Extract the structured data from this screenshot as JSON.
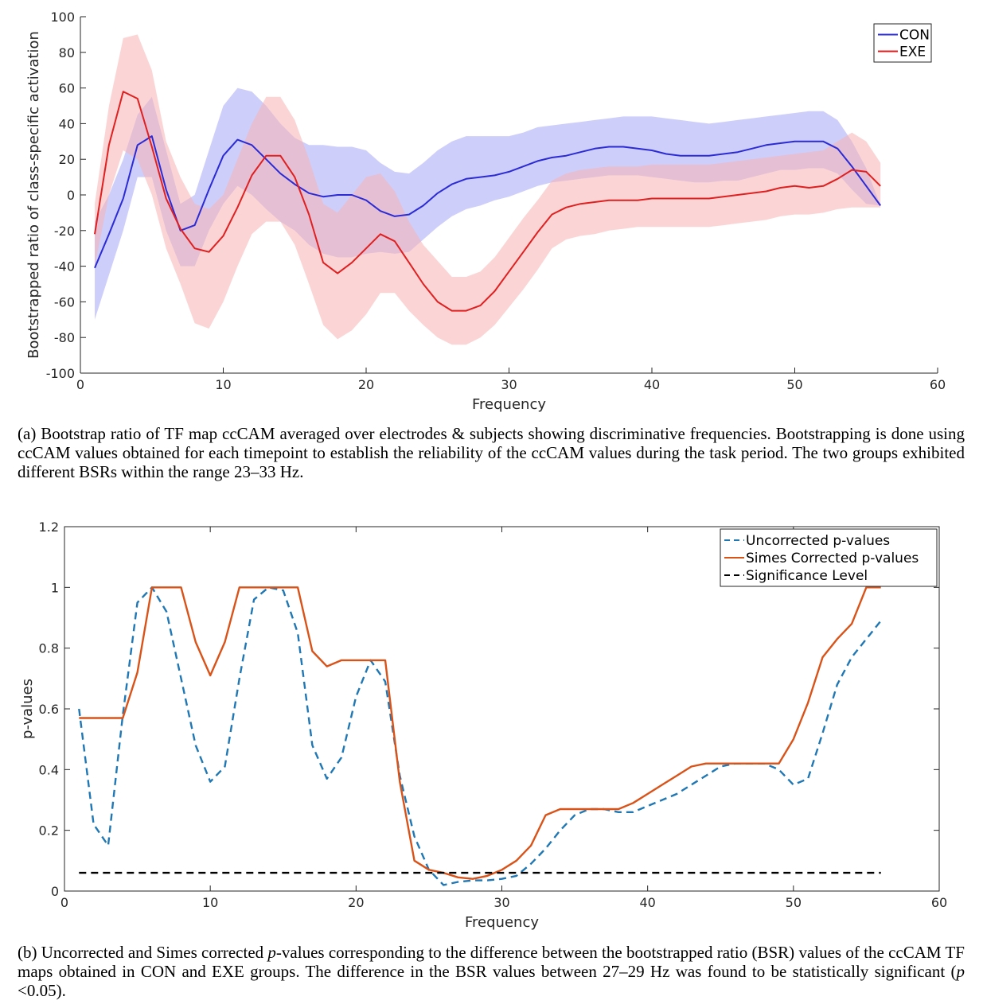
{
  "chart_data": [
    {
      "type": "line",
      "xlabel": "Frequency",
      "ylabel": "Bootstrapped ratio of class-specific activation",
      "xlim": [
        0,
        60
      ],
      "ylim": [
        -100,
        100
      ],
      "xticks": [
        0,
        10,
        20,
        30,
        40,
        50,
        60
      ],
      "yticks": [
        100,
        80,
        60,
        40,
        20,
        0,
        -20,
        -40,
        -60,
        -80,
        -100
      ],
      "grid": false,
      "legend_position": "top-right",
      "x": [
        1,
        2,
        3,
        4,
        5,
        6,
        7,
        8,
        9,
        10,
        11,
        12,
        13,
        14,
        15,
        16,
        17,
        18,
        19,
        20,
        21,
        22,
        23,
        24,
        25,
        26,
        27,
        28,
        29,
        30,
        31,
        32,
        33,
        34,
        35,
        36,
        37,
        38,
        39,
        40,
        41,
        42,
        43,
        44,
        45,
        46,
        47,
        48,
        49,
        50,
        51,
        52,
        53,
        54,
        55,
        56
      ],
      "series": [
        {
          "name": "CON",
          "color": "#2b2bd6",
          "band_color": "#a6a6f5",
          "values": [
            -41,
            -22,
            -2,
            28,
            33,
            3,
            -20,
            -17,
            3,
            22,
            31,
            28,
            20,
            12,
            6,
            1,
            -1,
            0,
            0,
            -3,
            -9,
            -12,
            -11,
            -6,
            1,
            6,
            9,
            10,
            11,
            13,
            16,
            19,
            21,
            22,
            24,
            26,
            27,
            27,
            26,
            25,
            23,
            22,
            22,
            22,
            23,
            24,
            26,
            28,
            29,
            30,
            30,
            30,
            26,
            16,
            5,
            -6
          ],
          "lower": [
            -70,
            -45,
            -20,
            10,
            10,
            -20,
            -40,
            -40,
            -20,
            -5,
            5,
            0,
            -8,
            -15,
            -20,
            -28,
            -33,
            -35,
            -35,
            -33,
            -32,
            -33,
            -32,
            -25,
            -18,
            -12,
            -8,
            -6,
            -3,
            -1,
            2,
            5,
            7,
            8,
            9,
            10,
            11,
            11,
            11,
            10,
            9,
            8,
            7,
            7,
            8,
            8,
            10,
            12,
            14,
            14,
            15,
            15,
            12,
            3,
            -5,
            -6
          ],
          "upper": [
            -15,
            0,
            20,
            45,
            55,
            25,
            -5,
            0,
            25,
            50,
            60,
            58,
            50,
            40,
            32,
            28,
            28,
            27,
            27,
            25,
            18,
            13,
            12,
            18,
            25,
            30,
            33,
            33,
            33,
            33,
            35,
            38,
            39,
            40,
            41,
            42,
            43,
            44,
            44,
            44,
            43,
            42,
            41,
            40,
            41,
            42,
            43,
            44,
            45,
            46,
            47,
            47,
            42,
            30,
            15,
            -6
          ]
        },
        {
          "name": "EXE",
          "color": "#e02020",
          "band_color": "#f8b3b3",
          "values": [
            -22,
            28,
            58,
            54,
            27,
            -2,
            -19,
            -30,
            -32,
            -23,
            -7,
            11,
            22,
            22,
            10,
            -11,
            -38,
            -44,
            -38,
            -30,
            -22,
            -26,
            -38,
            -50,
            -60,
            -65,
            -65,
            -62,
            -54,
            -43,
            -32,
            -21,
            -11,
            -7,
            -5,
            -4,
            -3,
            -3,
            -3,
            -2,
            -2,
            -2,
            -2,
            -2,
            -1,
            0,
            1,
            2,
            4,
            5,
            4,
            5,
            9,
            14,
            13,
            5
          ],
          "lower": [
            -40,
            0,
            25,
            20,
            0,
            -30,
            -50,
            -72,
            -75,
            -60,
            -40,
            -22,
            -15,
            -15,
            -28,
            -50,
            -73,
            -81,
            -76,
            -67,
            -55,
            -55,
            -65,
            -73,
            -80,
            -84,
            -84,
            -80,
            -73,
            -63,
            -53,
            -42,
            -30,
            -25,
            -23,
            -22,
            -20,
            -19,
            -18,
            -18,
            -18,
            -18,
            -18,
            -18,
            -17,
            -16,
            -15,
            -14,
            -12,
            -11,
            -11,
            -10,
            -8,
            -7,
            -7,
            -7
          ],
          "upper": [
            -5,
            50,
            88,
            90,
            70,
            30,
            10,
            -5,
            -8,
            0,
            20,
            40,
            55,
            55,
            42,
            20,
            -5,
            -10,
            0,
            10,
            12,
            2,
            -15,
            -28,
            -37,
            -46,
            -46,
            -43,
            -35,
            -24,
            -13,
            -3,
            8,
            12,
            14,
            15,
            16,
            16,
            16,
            17,
            17,
            17,
            17,
            17,
            18,
            19,
            20,
            21,
            22,
            23,
            24,
            25,
            30,
            35,
            30,
            18
          ]
        }
      ],
      "caption": "(a) Bootstrap ratio of TF map ccCAM averaged over electrodes & subjects showing discriminative frequencies. Bootstrapping is done using ccCAM values obtained for each timepoint to establish the reliability of the ccCAM values during the task period. The two groups exhibited different BSRs within the range 23–33 Hz."
    },
    {
      "type": "line",
      "xlabel": "Frequency",
      "ylabel": "p-values",
      "xlim": [
        0,
        60
      ],
      "ylim": [
        0,
        1.2
      ],
      "xticks": [
        0,
        10,
        20,
        30,
        40,
        50,
        60
      ],
      "yticks": [
        "1.2",
        "1",
        "0.8",
        "0.6",
        "0.4",
        "0.2",
        "0"
      ],
      "grid": false,
      "legend_position": "top-right",
      "x": [
        1,
        2,
        3,
        4,
        5,
        6,
        7,
        8,
        9,
        10,
        11,
        12,
        13,
        14,
        15,
        16,
        17,
        18,
        19,
        20,
        21,
        22,
        23,
        24,
        25,
        26,
        27,
        28,
        29,
        30,
        31,
        32,
        33,
        34,
        35,
        36,
        37,
        38,
        39,
        40,
        41,
        42,
        43,
        44,
        45,
        46,
        47,
        48,
        49,
        50,
        51,
        52,
        53,
        54,
        55,
        56
      ],
      "series": [
        {
          "name": "Uncorrected p-values",
          "color": "#1f77b4",
          "style": "dashed",
          "values": [
            0.6,
            0.22,
            0.15,
            0.58,
            0.95,
            1.0,
            0.92,
            0.7,
            0.48,
            0.36,
            0.41,
            0.7,
            0.96,
            1.0,
            0.99,
            0.85,
            0.48,
            0.37,
            0.44,
            0.64,
            0.76,
            0.69,
            0.38,
            0.18,
            0.07,
            0.02,
            0.03,
            0.035,
            0.035,
            0.04,
            0.05,
            0.09,
            0.14,
            0.2,
            0.25,
            0.27,
            0.27,
            0.26,
            0.26,
            0.28,
            0.3,
            0.32,
            0.35,
            0.38,
            0.41,
            0.42,
            0.42,
            0.42,
            0.4,
            0.35,
            0.37,
            0.52,
            0.68,
            0.77,
            0.83,
            0.89
          ]
        },
        {
          "name": "Simes Corrected p-values",
          "color": "#d95319",
          "style": "solid",
          "values": [
            0.57,
            0.57,
            0.57,
            0.57,
            0.72,
            1.0,
            1.0,
            1.0,
            0.82,
            0.71,
            0.82,
            1.0,
            1.0,
            1.0,
            1.0,
            1.0,
            0.79,
            0.74,
            0.76,
            0.76,
            0.76,
            0.76,
            0.36,
            0.1,
            0.07,
            0.06,
            0.045,
            0.04,
            0.05,
            0.07,
            0.1,
            0.15,
            0.25,
            0.27,
            0.27,
            0.27,
            0.27,
            0.27,
            0.29,
            0.32,
            0.35,
            0.38,
            0.41,
            0.42,
            0.42,
            0.42,
            0.42,
            0.42,
            0.42,
            0.5,
            0.62,
            0.77,
            0.83,
            0.88,
            1.0,
            1.0
          ]
        },
        {
          "name": "Significance Level",
          "color": "#000000",
          "style": "dashed",
          "values": [
            0.06,
            0.06,
            0.06,
            0.06,
            0.06,
            0.06,
            0.06,
            0.06,
            0.06,
            0.06,
            0.06,
            0.06,
            0.06,
            0.06,
            0.06,
            0.06,
            0.06,
            0.06,
            0.06,
            0.06,
            0.06,
            0.06,
            0.06,
            0.06,
            0.06,
            0.06,
            0.06,
            0.06,
            0.06,
            0.06,
            0.06,
            0.06,
            0.06,
            0.06,
            0.06,
            0.06,
            0.06,
            0.06,
            0.06,
            0.06,
            0.06,
            0.06,
            0.06,
            0.06,
            0.06,
            0.06,
            0.06,
            0.06,
            0.06,
            0.06,
            0.06,
            0.06,
            0.06,
            0.06,
            0.06,
            0.06
          ]
        }
      ],
      "caption_parts": [
        "(b) Uncorrected and Simes corrected ",
        "p",
        "-values corresponding to the difference between the bootstrapped ratio (BSR) values of the ccCAM TF maps obtained in CON and EXE groups. The difference in the BSR values between 27–29 Hz was found to be statistically significant (",
        "p",
        " <0.05)."
      ]
    }
  ]
}
